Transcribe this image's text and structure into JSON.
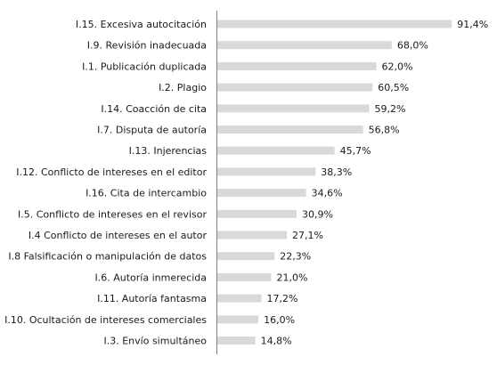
{
  "chart_data": {
    "type": "bar",
    "orientation": "horizontal",
    "categories": [
      "I.15. Excesiva autocitación",
      "I.9. Revisión inadecuada",
      "I.1. Publicación duplicada",
      "I.2. Plagio",
      "I.14. Coacción de cita",
      "I.7. Disputa de autoría",
      "I.13. Injerencias",
      "I.12. Conflicto de intereses en el editor",
      "I.16. Cita de intercambio",
      "I.5. Conflicto de intereses en el revisor",
      "I.4 Conflicto de intereses en el autor",
      "I.8 Falsificación o manipulación de datos",
      "I.6. Autoría inmerecida",
      "I.11. Autoría fantasma",
      "I.10. Ocultación de intereses comerciales",
      "I.3. Envío simultáneo"
    ],
    "values": [
      91.4,
      68.0,
      62.0,
      60.5,
      59.2,
      56.8,
      45.7,
      38.3,
      34.6,
      30.9,
      27.1,
      22.3,
      21.0,
      17.2,
      16.0,
      14.8
    ],
    "value_labels": [
      "91,4%",
      "68,0%",
      "62,0%",
      "60,5%",
      "59,2%",
      "56,8%",
      "45,7%",
      "38,3%",
      "34,6%",
      "30,9%",
      "27,1%",
      "22,3%",
      "21,0%",
      "17,2%",
      "16,0%",
      "14,8%"
    ],
    "title": "",
    "xlabel": "",
    "ylabel": "",
    "xlim": [
      0,
      100
    ],
    "grid": false,
    "legend": "none",
    "colors": {
      "bar": "#d9d9d9",
      "axis": "#7f7f7f",
      "text": "#1a1a1a"
    }
  }
}
